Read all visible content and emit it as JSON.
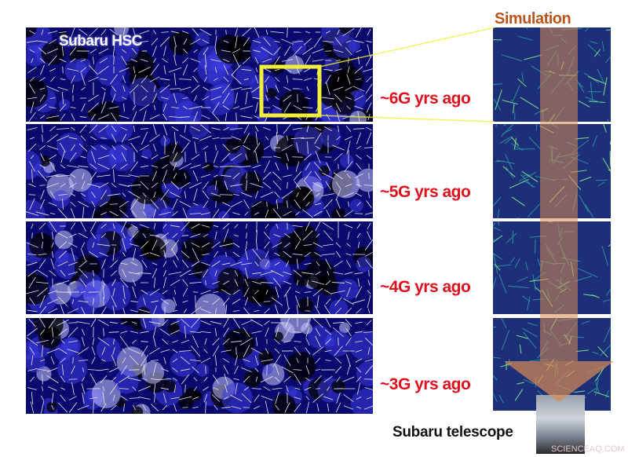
{
  "left_panel": {
    "label": "Subaru HSC"
  },
  "epochs": [
    "~6G yrs ago",
    "~5G yrs ago",
    "~4G yrs ago",
    "~3G yrs ago"
  ],
  "simulation": {
    "label": "Simulation"
  },
  "telescope": {
    "label": "Subaru telescope"
  },
  "watermark": "SCIENCEAQ.COM",
  "colors": {
    "map_bg": "#0a0a6e",
    "epoch_text": "#e0101c",
    "sim_label": "#b8561e",
    "zoom_box": "#f2ef3a",
    "arrow": "#d98a52"
  }
}
